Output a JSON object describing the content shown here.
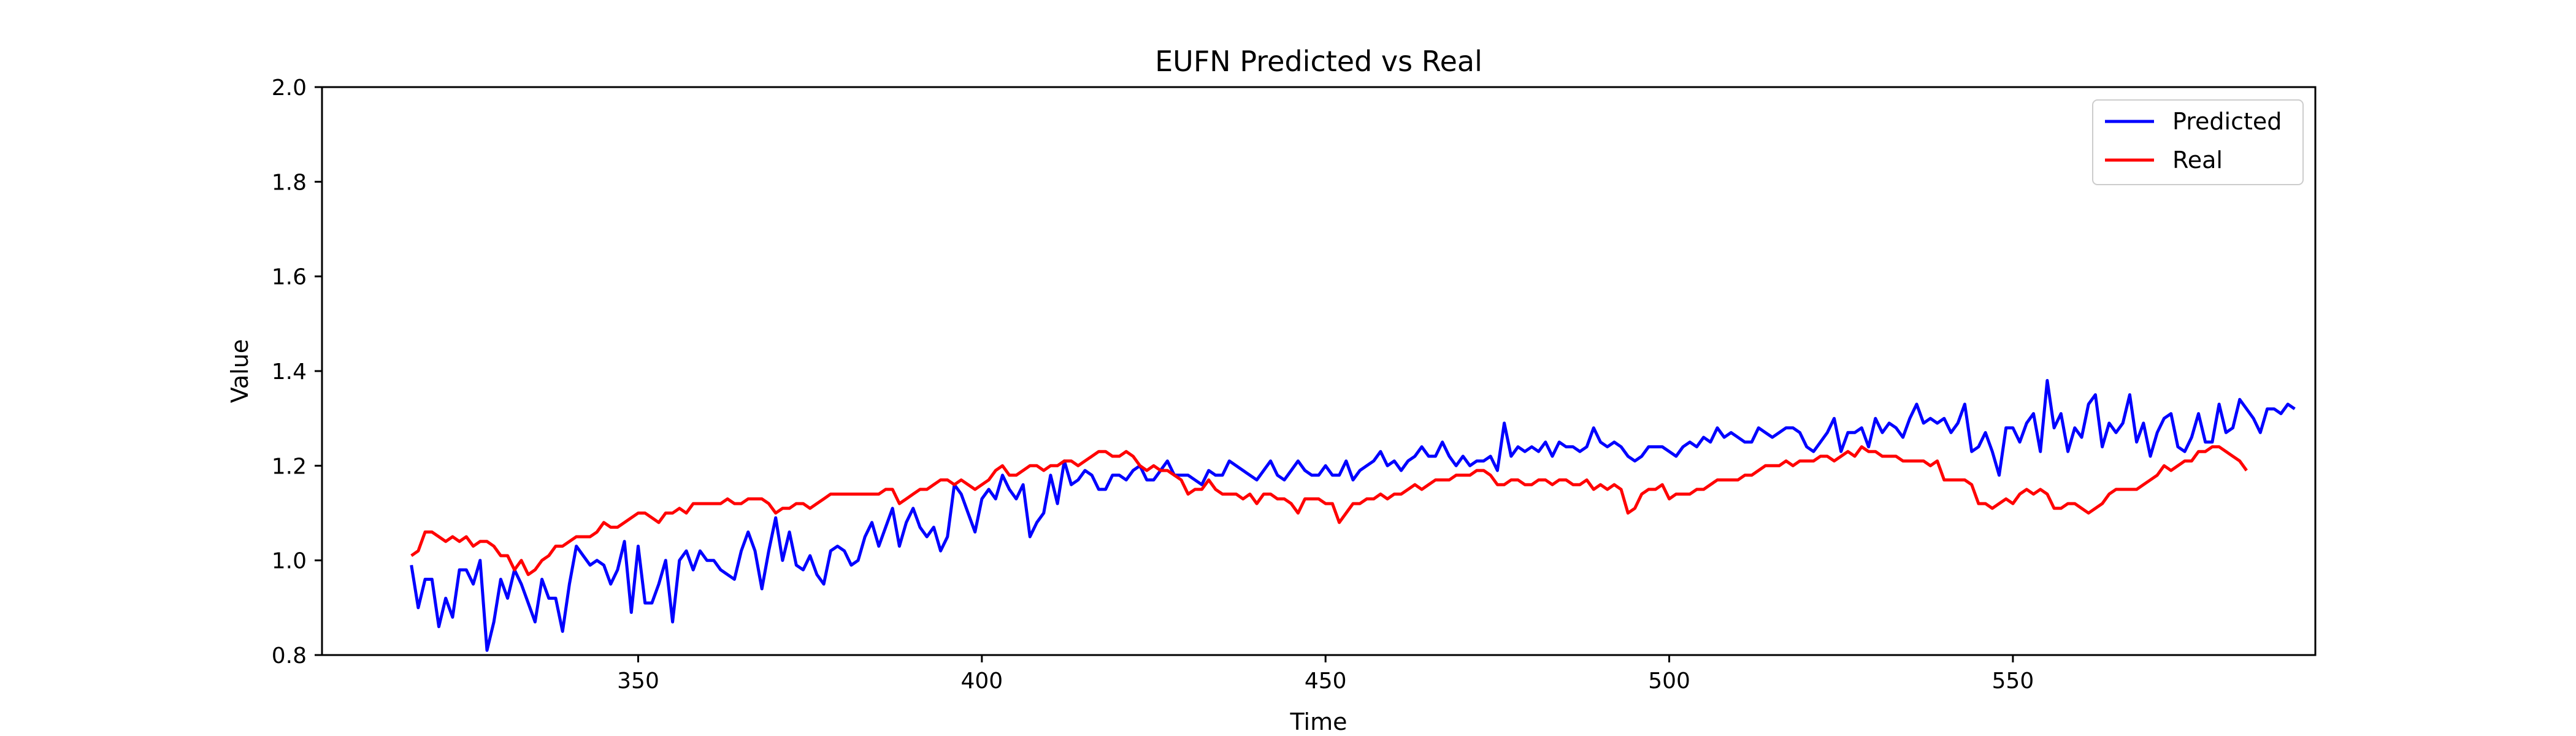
{
  "chart_data": {
    "type": "line",
    "title": "EUFN Predicted vs Real",
    "xlabel": "Time",
    "ylabel": "Value",
    "xlim": [
      304,
      594
    ],
    "ylim": [
      0.8,
      2.0
    ],
    "xticks": [
      350,
      400,
      450,
      500,
      550
    ],
    "yticks": [
      0.8,
      1.0,
      1.2,
      1.4,
      1.6,
      1.8,
      2.0
    ],
    "xtick_labels": [
      "350",
      "400",
      "450",
      "500",
      "550"
    ],
    "ytick_labels": [
      "0.8",
      "1.0",
      "1.2",
      "1.4",
      "1.6",
      "1.8",
      "2.0"
    ],
    "grid": false,
    "legend_position": "top-right",
    "x_start": 317,
    "series": [
      {
        "name": "Predicted",
        "color": "#0000ff",
        "values": [
          0.99,
          0.9,
          0.96,
          0.96,
          0.86,
          0.92,
          0.88,
          0.98,
          0.98,
          0.95,
          1.0,
          0.81,
          0.87,
          0.96,
          0.92,
          0.98,
          0.95,
          0.91,
          0.87,
          0.96,
          0.92,
          0.92,
          0.85,
          0.95,
          1.03,
          1.01,
          0.99,
          1.0,
          0.99,
          0.95,
          0.98,
          1.04,
          0.89,
          1.03,
          0.91,
          0.91,
          0.95,
          1.0,
          0.87,
          1.0,
          1.02,
          0.98,
          1.02,
          1.0,
          1.0,
          0.98,
          0.97,
          0.96,
          1.02,
          1.06,
          1.02,
          0.94,
          1.02,
          1.09,
          1.0,
          1.06,
          0.99,
          0.98,
          1.01,
          0.97,
          0.95,
          1.02,
          1.03,
          1.02,
          0.99,
          1.0,
          1.05,
          1.08,
          1.03,
          1.07,
          1.11,
          1.03,
          1.08,
          1.11,
          1.07,
          1.05,
          1.07,
          1.02,
          1.05,
          1.16,
          1.14,
          1.1,
          1.06,
          1.13,
          1.15,
          1.13,
          1.18,
          1.15,
          1.13,
          1.16,
          1.05,
          1.08,
          1.1,
          1.18,
          1.12,
          1.21,
          1.16,
          1.17,
          1.19,
          1.18,
          1.15,
          1.15,
          1.18,
          1.18,
          1.17,
          1.19,
          1.2,
          1.17,
          1.17,
          1.19,
          1.21,
          1.18,
          1.18,
          1.18,
          1.17,
          1.16,
          1.19,
          1.18,
          1.18,
          1.21,
          1.2,
          1.19,
          1.18,
          1.17,
          1.19,
          1.21,
          1.18,
          1.17,
          1.19,
          1.21,
          1.19,
          1.18,
          1.18,
          1.2,
          1.18,
          1.18,
          1.21,
          1.17,
          1.19,
          1.2,
          1.21,
          1.23,
          1.2,
          1.21,
          1.19,
          1.21,
          1.22,
          1.24,
          1.22,
          1.22,
          1.25,
          1.22,
          1.2,
          1.22,
          1.2,
          1.21,
          1.21,
          1.22,
          1.19,
          1.29,
          1.22,
          1.24,
          1.23,
          1.24,
          1.23,
          1.25,
          1.22,
          1.25,
          1.24,
          1.24,
          1.23,
          1.24,
          1.28,
          1.25,
          1.24,
          1.25,
          1.24,
          1.22,
          1.21,
          1.22,
          1.24,
          1.24,
          1.24,
          1.23,
          1.22,
          1.24,
          1.25,
          1.24,
          1.26,
          1.25,
          1.28,
          1.26,
          1.27,
          1.26,
          1.25,
          1.25,
          1.28,
          1.27,
          1.26,
          1.27,
          1.28,
          1.28,
          1.27,
          1.24,
          1.23,
          1.25,
          1.27,
          1.3,
          1.23,
          1.27,
          1.27,
          1.28,
          1.24,
          1.3,
          1.27,
          1.29,
          1.28,
          1.26,
          1.3,
          1.33,
          1.29,
          1.3,
          1.29,
          1.3,
          1.27,
          1.29,
          1.33,
          1.23,
          1.24,
          1.27,
          1.23,
          1.18,
          1.28,
          1.28,
          1.25,
          1.29,
          1.31,
          1.23,
          1.38,
          1.28,
          1.31,
          1.23,
          1.28,
          1.26,
          1.33,
          1.35,
          1.24,
          1.29,
          1.27,
          1.29,
          1.35,
          1.25,
          1.29,
          1.22,
          1.27,
          1.3,
          1.31,
          1.24,
          1.23,
          1.26,
          1.31,
          1.25,
          1.25,
          1.33,
          1.27,
          1.28,
          1.34,
          1.32,
          1.3,
          1.27,
          1.32,
          1.32,
          1.31,
          1.33,
          1.32
        ]
      },
      {
        "name": "Real",
        "color": "#ff0000",
        "values": [
          1.01,
          1.02,
          1.06,
          1.06,
          1.05,
          1.04,
          1.05,
          1.04,
          1.05,
          1.03,
          1.04,
          1.04,
          1.03,
          1.01,
          1.01,
          0.98,
          1.0,
          0.97,
          0.98,
          1.0,
          1.01,
          1.03,
          1.03,
          1.04,
          1.05,
          1.05,
          1.05,
          1.06,
          1.08,
          1.07,
          1.07,
          1.08,
          1.09,
          1.1,
          1.1,
          1.09,
          1.08,
          1.1,
          1.1,
          1.11,
          1.1,
          1.12,
          1.12,
          1.12,
          1.12,
          1.12,
          1.13,
          1.12,
          1.12,
          1.13,
          1.13,
          1.13,
          1.12,
          1.1,
          1.11,
          1.11,
          1.12,
          1.12,
          1.11,
          1.12,
          1.13,
          1.14,
          1.14,
          1.14,
          1.14,
          1.14,
          1.14,
          1.14,
          1.14,
          1.15,
          1.15,
          1.12,
          1.13,
          1.14,
          1.15,
          1.15,
          1.16,
          1.17,
          1.17,
          1.16,
          1.17,
          1.16,
          1.15,
          1.16,
          1.17,
          1.19,
          1.2,
          1.18,
          1.18,
          1.19,
          1.2,
          1.2,
          1.19,
          1.2,
          1.2,
          1.21,
          1.21,
          1.2,
          1.21,
          1.22,
          1.23,
          1.23,
          1.22,
          1.22,
          1.23,
          1.22,
          1.2,
          1.19,
          1.2,
          1.19,
          1.19,
          1.18,
          1.17,
          1.14,
          1.15,
          1.15,
          1.17,
          1.15,
          1.14,
          1.14,
          1.14,
          1.13,
          1.14,
          1.12,
          1.14,
          1.14,
          1.13,
          1.13,
          1.12,
          1.1,
          1.13,
          1.13,
          1.13,
          1.12,
          1.12,
          1.08,
          1.1,
          1.12,
          1.12,
          1.13,
          1.13,
          1.14,
          1.13,
          1.14,
          1.14,
          1.15,
          1.16,
          1.15,
          1.16,
          1.17,
          1.17,
          1.17,
          1.18,
          1.18,
          1.18,
          1.19,
          1.19,
          1.18,
          1.16,
          1.16,
          1.17,
          1.17,
          1.16,
          1.16,
          1.17,
          1.17,
          1.16,
          1.17,
          1.17,
          1.16,
          1.16,
          1.17,
          1.15,
          1.16,
          1.15,
          1.16,
          1.15,
          1.1,
          1.11,
          1.14,
          1.15,
          1.15,
          1.16,
          1.13,
          1.14,
          1.14,
          1.14,
          1.15,
          1.15,
          1.16,
          1.17,
          1.17,
          1.17,
          1.17,
          1.18,
          1.18,
          1.19,
          1.2,
          1.2,
          1.2,
          1.21,
          1.2,
          1.21,
          1.21,
          1.21,
          1.22,
          1.22,
          1.21,
          1.22,
          1.23,
          1.22,
          1.24,
          1.23,
          1.23,
          1.22,
          1.22,
          1.22,
          1.21,
          1.21,
          1.21,
          1.21,
          1.2,
          1.21,
          1.17,
          1.17,
          1.17,
          1.17,
          1.16,
          1.12,
          1.12,
          1.11,
          1.12,
          1.13,
          1.12,
          1.14,
          1.15,
          1.14,
          1.15,
          1.14,
          1.11,
          1.11,
          1.12,
          1.12,
          1.11,
          1.1,
          1.11,
          1.12,
          1.14,
          1.15,
          1.15,
          1.15,
          1.15,
          1.16,
          1.17,
          1.18,
          1.2,
          1.19,
          1.2,
          1.21,
          1.21,
          1.23,
          1.23,
          1.24,
          1.24,
          1.23,
          1.22,
          1.21,
          1.19
        ]
      }
    ]
  }
}
